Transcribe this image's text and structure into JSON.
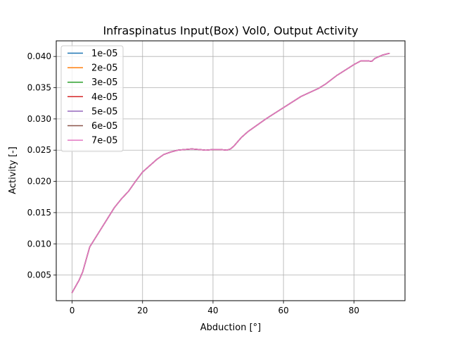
{
  "chart_data": {
    "type": "line",
    "title": "Infraspinatus Input(Box) Vol0, Output Activity",
    "xlabel": "Abduction [°]",
    "ylabel": "Activity [-]",
    "xlim": [
      -4.5,
      94.5
    ],
    "ylim": [
      0.0009,
      0.0425
    ],
    "xticks": [
      0,
      20,
      40,
      60,
      80
    ],
    "xtick_labels": [
      "0",
      "20",
      "40",
      "60",
      "80"
    ],
    "yticks": [
      0.005,
      0.01,
      0.015,
      0.02,
      0.025,
      0.03,
      0.035,
      0.04
    ],
    "ytick_labels": [
      "0.005",
      "0.010",
      "0.015",
      "0.020",
      "0.025",
      "0.030",
      "0.035",
      "0.040"
    ],
    "grid": true,
    "legend_position": "top-left",
    "x": [
      0,
      1,
      2,
      3,
      4,
      5,
      6,
      8,
      10,
      12,
      14,
      16,
      18,
      20,
      22,
      24,
      26,
      28,
      30,
      32,
      34,
      36,
      38,
      40,
      42,
      44,
      45,
      46,
      48,
      50,
      55,
      60,
      65,
      70,
      72,
      75,
      80,
      82,
      84,
      85,
      86,
      88,
      90
    ],
    "series": [
      {
        "name": "1e-05",
        "color": "#1f77b4",
        "values": [
          0.0022,
          0.0032,
          0.0042,
          0.0055,
          0.0075,
          0.0095,
          0.0104,
          0.0122,
          0.014,
          0.0158,
          0.0172,
          0.0184,
          0.02,
          0.0215,
          0.0225,
          0.0235,
          0.0243,
          0.0247,
          0.025,
          0.0251,
          0.0252,
          0.0251,
          0.025,
          0.0251,
          0.0251,
          0.025,
          0.0252,
          0.0257,
          0.027,
          0.028,
          0.03,
          0.0318,
          0.0336,
          0.0349,
          0.0356,
          0.0369,
          0.0387,
          0.0393,
          0.0393,
          0.0392,
          0.0397,
          0.0402,
          0.0405
        ]
      },
      {
        "name": "2e-05",
        "color": "#ff7f0e",
        "values": [
          0.0022,
          0.0032,
          0.0042,
          0.0055,
          0.0075,
          0.0095,
          0.0104,
          0.0122,
          0.014,
          0.0158,
          0.0172,
          0.0184,
          0.02,
          0.0215,
          0.0225,
          0.0235,
          0.0243,
          0.0247,
          0.025,
          0.0251,
          0.0252,
          0.0251,
          0.025,
          0.0251,
          0.0251,
          0.025,
          0.0252,
          0.0257,
          0.027,
          0.028,
          0.03,
          0.0318,
          0.0336,
          0.0349,
          0.0356,
          0.0369,
          0.0387,
          0.0393,
          0.0393,
          0.0392,
          0.0397,
          0.0402,
          0.0405
        ]
      },
      {
        "name": "3e-05",
        "color": "#2ca02c",
        "values": [
          0.0022,
          0.0032,
          0.0042,
          0.0055,
          0.0075,
          0.0095,
          0.0104,
          0.0122,
          0.014,
          0.0158,
          0.0172,
          0.0184,
          0.02,
          0.0215,
          0.0225,
          0.0235,
          0.0243,
          0.0247,
          0.025,
          0.0251,
          0.0252,
          0.0251,
          0.025,
          0.0251,
          0.0251,
          0.025,
          0.0252,
          0.0257,
          0.027,
          0.028,
          0.03,
          0.0318,
          0.0336,
          0.0349,
          0.0356,
          0.0369,
          0.0387,
          0.0393,
          0.0393,
          0.0392,
          0.0397,
          0.0402,
          0.0405
        ]
      },
      {
        "name": "4e-05",
        "color": "#d62728",
        "values": [
          0.0022,
          0.0032,
          0.0042,
          0.0055,
          0.0075,
          0.0095,
          0.0104,
          0.0122,
          0.014,
          0.0158,
          0.0172,
          0.0184,
          0.02,
          0.0215,
          0.0225,
          0.0235,
          0.0243,
          0.0247,
          0.025,
          0.0251,
          0.0252,
          0.0251,
          0.025,
          0.0251,
          0.0251,
          0.025,
          0.0252,
          0.0257,
          0.027,
          0.028,
          0.03,
          0.0318,
          0.0336,
          0.0349,
          0.0356,
          0.0369,
          0.0387,
          0.0393,
          0.0393,
          0.0392,
          0.0397,
          0.0402,
          0.0405
        ]
      },
      {
        "name": "5e-05",
        "color": "#9467bd",
        "values": [
          0.0022,
          0.0032,
          0.0042,
          0.0055,
          0.0075,
          0.0095,
          0.0104,
          0.0122,
          0.014,
          0.0158,
          0.0172,
          0.0184,
          0.02,
          0.0215,
          0.0225,
          0.0235,
          0.0243,
          0.0247,
          0.025,
          0.0251,
          0.0252,
          0.0251,
          0.025,
          0.0251,
          0.0251,
          0.025,
          0.0252,
          0.0257,
          0.027,
          0.028,
          0.03,
          0.0318,
          0.0336,
          0.0349,
          0.0356,
          0.0369,
          0.0387,
          0.0393,
          0.0393,
          0.0392,
          0.0397,
          0.0402,
          0.0405
        ]
      },
      {
        "name": "6e-05",
        "color": "#8c564b",
        "values": [
          0.0022,
          0.0032,
          0.0042,
          0.0055,
          0.0075,
          0.0095,
          0.0104,
          0.0122,
          0.014,
          0.0158,
          0.0172,
          0.0184,
          0.02,
          0.0215,
          0.0225,
          0.0235,
          0.0243,
          0.0247,
          0.025,
          0.0251,
          0.0252,
          0.0251,
          0.025,
          0.0251,
          0.0251,
          0.025,
          0.0252,
          0.0257,
          0.027,
          0.028,
          0.03,
          0.0318,
          0.0336,
          0.0349,
          0.0356,
          0.0369,
          0.0387,
          0.0393,
          0.0393,
          0.0392,
          0.0397,
          0.0402,
          0.0405
        ]
      },
      {
        "name": "7e-05",
        "color": "#e377c2",
        "values": [
          0.0022,
          0.0032,
          0.0042,
          0.0055,
          0.0075,
          0.0095,
          0.0104,
          0.0122,
          0.014,
          0.0158,
          0.0172,
          0.0184,
          0.02,
          0.0215,
          0.0225,
          0.0235,
          0.0243,
          0.0247,
          0.025,
          0.0251,
          0.0252,
          0.0251,
          0.025,
          0.0251,
          0.0251,
          0.025,
          0.0252,
          0.0257,
          0.027,
          0.028,
          0.03,
          0.0318,
          0.0336,
          0.0349,
          0.0356,
          0.0369,
          0.0387,
          0.0393,
          0.0393,
          0.0392,
          0.0397,
          0.0402,
          0.0405
        ]
      }
    ]
  }
}
